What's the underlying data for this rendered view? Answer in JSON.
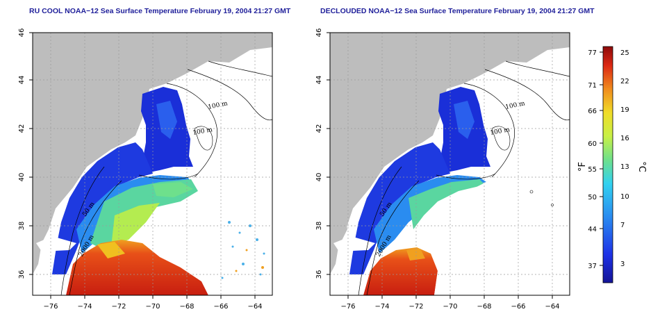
{
  "titles": {
    "left": "RU COOL NOAA−12 Sea Surface Temperature February 19, 2004 21:27 GMT",
    "right": "DECLOUDED NOAA−12 Sea Surface Temperature February 19, 2004 21:27 GMT"
  },
  "axes": {
    "lon_ticks": [
      "−76",
      "−74",
      "−72",
      "−70",
      "−68",
      "−66",
      "−64"
    ],
    "lat_ticks": [
      "36",
      "38",
      "40",
      "42",
      "44",
      "46"
    ]
  },
  "isobaths": [
    "100 m",
    "100 m",
    "50 m",
    "2000 m"
  ],
  "colorbar": {
    "unit_f": "°F",
    "unit_c": "°C",
    "f_ticks": [
      "77",
      "71",
      "66",
      "60",
      "55",
      "50",
      "44",
      "37"
    ],
    "c_ticks": [
      "25",
      "22",
      "19",
      "16",
      "13",
      "10",
      "7",
      "3"
    ]
  },
  "colors": {
    "land": "#bdbdbd",
    "cold": "#1a2fd8",
    "warm": "#d42a10",
    "title": "#1f1f9a"
  }
}
